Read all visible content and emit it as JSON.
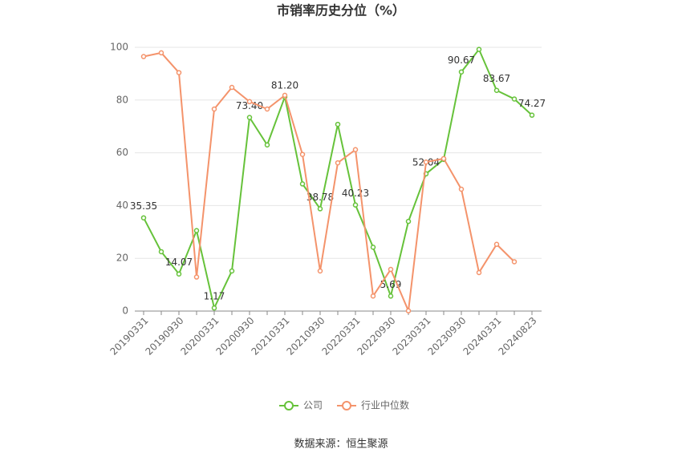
{
  "chart_data": {
    "type": "line",
    "title": "市销率历史分位（%）",
    "categories": [
      "20190331",
      null,
      "20190930",
      null,
      "20200331",
      null,
      "20200930",
      null,
      "20210331",
      null,
      "20210930",
      null,
      "20220331",
      null,
      "20220930",
      null,
      "20230331",
      null,
      "20230930",
      null,
      "20240331",
      null,
      "20240823"
    ],
    "series": [
      {
        "name": "公司",
        "color": "#66c23a",
        "values": [
          35.35,
          22.5,
          14.07,
          30.5,
          1.17,
          15.2,
          73.4,
          63,
          81.2,
          48.2,
          38.78,
          70.8,
          40.23,
          24.2,
          5.69,
          34,
          52.04,
          57.5,
          90.67,
          99.2,
          83.67,
          80.4,
          74.27
        ],
        "value_labels": [
          "35.35",
          null,
          "14.07",
          null,
          "1.17",
          null,
          "73.40",
          null,
          "81.20",
          null,
          "38.78",
          null,
          "40.23",
          null,
          "5.69",
          null,
          "52.04",
          null,
          "90.67",
          null,
          "83.67",
          null,
          "74.27"
        ]
      },
      {
        "name": "行业中位数",
        "color": "#f4936b",
        "values": [
          96.5,
          97.9,
          90.4,
          12.9,
          76.6,
          84.8,
          79.4,
          76.6,
          81.8,
          59.4,
          15.2,
          56.2,
          61.2,
          5.7,
          15.8,
          0.1,
          56.5,
          57.8,
          46.2,
          14.6,
          25.3,
          18.7,
          null
        ]
      }
    ],
    "ylim": [
      0,
      100
    ],
    "yticks": [
      0,
      20,
      40,
      60,
      80,
      100
    ],
    "grid": true,
    "legend": "bottom",
    "source": "数据来源：恒生聚源"
  }
}
